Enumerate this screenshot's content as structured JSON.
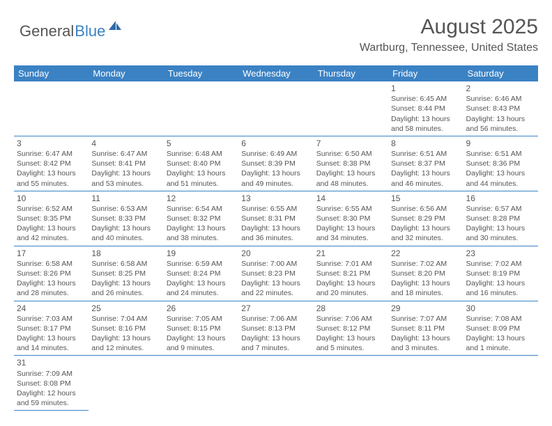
{
  "logo": {
    "part1": "General",
    "part2": "Blue",
    "icon_color": "#2f6aa8"
  },
  "title": "August 2025",
  "location": "Wartburg, Tennessee, United States",
  "header_bg": "#3b82c4",
  "header_fg": "#ffffff",
  "border_color": "#3b82c4",
  "text_color": "#555555",
  "days": [
    "Sunday",
    "Monday",
    "Tuesday",
    "Wednesday",
    "Thursday",
    "Friday",
    "Saturday"
  ],
  "cells": [
    [
      null,
      null,
      null,
      null,
      null,
      {
        "n": "1",
        "sr": "6:45 AM",
        "ss": "8:44 PM",
        "dl": "13 hours and 58 minutes."
      },
      {
        "n": "2",
        "sr": "6:46 AM",
        "ss": "8:43 PM",
        "dl": "13 hours and 56 minutes."
      }
    ],
    [
      {
        "n": "3",
        "sr": "6:47 AM",
        "ss": "8:42 PM",
        "dl": "13 hours and 55 minutes."
      },
      {
        "n": "4",
        "sr": "6:47 AM",
        "ss": "8:41 PM",
        "dl": "13 hours and 53 minutes."
      },
      {
        "n": "5",
        "sr": "6:48 AM",
        "ss": "8:40 PM",
        "dl": "13 hours and 51 minutes."
      },
      {
        "n": "6",
        "sr": "6:49 AM",
        "ss": "8:39 PM",
        "dl": "13 hours and 49 minutes."
      },
      {
        "n": "7",
        "sr": "6:50 AM",
        "ss": "8:38 PM",
        "dl": "13 hours and 48 minutes."
      },
      {
        "n": "8",
        "sr": "6:51 AM",
        "ss": "8:37 PM",
        "dl": "13 hours and 46 minutes."
      },
      {
        "n": "9",
        "sr": "6:51 AM",
        "ss": "8:36 PM",
        "dl": "13 hours and 44 minutes."
      }
    ],
    [
      {
        "n": "10",
        "sr": "6:52 AM",
        "ss": "8:35 PM",
        "dl": "13 hours and 42 minutes."
      },
      {
        "n": "11",
        "sr": "6:53 AM",
        "ss": "8:33 PM",
        "dl": "13 hours and 40 minutes."
      },
      {
        "n": "12",
        "sr": "6:54 AM",
        "ss": "8:32 PM",
        "dl": "13 hours and 38 minutes."
      },
      {
        "n": "13",
        "sr": "6:55 AM",
        "ss": "8:31 PM",
        "dl": "13 hours and 36 minutes."
      },
      {
        "n": "14",
        "sr": "6:55 AM",
        "ss": "8:30 PM",
        "dl": "13 hours and 34 minutes."
      },
      {
        "n": "15",
        "sr": "6:56 AM",
        "ss": "8:29 PM",
        "dl": "13 hours and 32 minutes."
      },
      {
        "n": "16",
        "sr": "6:57 AM",
        "ss": "8:28 PM",
        "dl": "13 hours and 30 minutes."
      }
    ],
    [
      {
        "n": "17",
        "sr": "6:58 AM",
        "ss": "8:26 PM",
        "dl": "13 hours and 28 minutes."
      },
      {
        "n": "18",
        "sr": "6:58 AM",
        "ss": "8:25 PM",
        "dl": "13 hours and 26 minutes."
      },
      {
        "n": "19",
        "sr": "6:59 AM",
        "ss": "8:24 PM",
        "dl": "13 hours and 24 minutes."
      },
      {
        "n": "20",
        "sr": "7:00 AM",
        "ss": "8:23 PM",
        "dl": "13 hours and 22 minutes."
      },
      {
        "n": "21",
        "sr": "7:01 AM",
        "ss": "8:21 PM",
        "dl": "13 hours and 20 minutes."
      },
      {
        "n": "22",
        "sr": "7:02 AM",
        "ss": "8:20 PM",
        "dl": "13 hours and 18 minutes."
      },
      {
        "n": "23",
        "sr": "7:02 AM",
        "ss": "8:19 PM",
        "dl": "13 hours and 16 minutes."
      }
    ],
    [
      {
        "n": "24",
        "sr": "7:03 AM",
        "ss": "8:17 PM",
        "dl": "13 hours and 14 minutes."
      },
      {
        "n": "25",
        "sr": "7:04 AM",
        "ss": "8:16 PM",
        "dl": "13 hours and 12 minutes."
      },
      {
        "n": "26",
        "sr": "7:05 AM",
        "ss": "8:15 PM",
        "dl": "13 hours and 9 minutes."
      },
      {
        "n": "27",
        "sr": "7:06 AM",
        "ss": "8:13 PM",
        "dl": "13 hours and 7 minutes."
      },
      {
        "n": "28",
        "sr": "7:06 AM",
        "ss": "8:12 PM",
        "dl": "13 hours and 5 minutes."
      },
      {
        "n": "29",
        "sr": "7:07 AM",
        "ss": "8:11 PM",
        "dl": "13 hours and 3 minutes."
      },
      {
        "n": "30",
        "sr": "7:08 AM",
        "ss": "8:09 PM",
        "dl": "13 hours and 1 minute."
      }
    ],
    [
      {
        "n": "31",
        "sr": "7:09 AM",
        "ss": "8:08 PM",
        "dl": "12 hours and 59 minutes."
      },
      null,
      null,
      null,
      null,
      null,
      null
    ]
  ]
}
